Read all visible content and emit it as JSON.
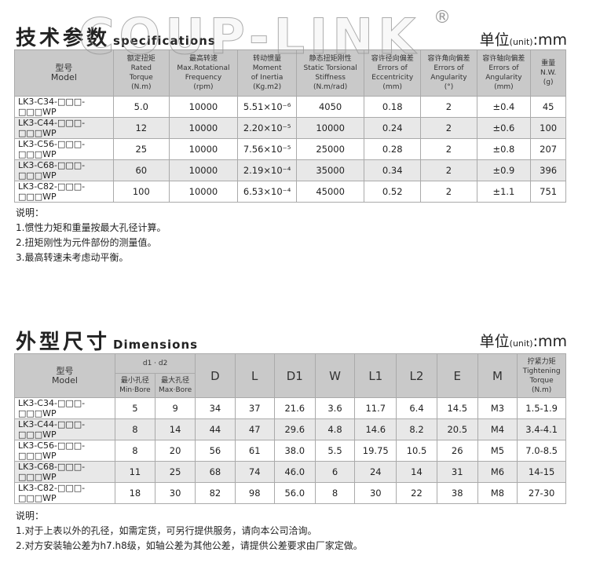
{
  "brand": "COUP-LINK",
  "spec": {
    "title_cn": "技术参数",
    "title_en": "specifications",
    "unit_label": "单位",
    "unit_en": "(unit)",
    "unit_value": ":mm",
    "headers": [
      [
        "型号",
        "Model"
      ],
      [
        "额定扭矩",
        "Rated",
        "Torque",
        "(N.m)"
      ],
      [
        "最高转速",
        "Max.Rotational",
        "Frequency",
        "(rpm)"
      ],
      [
        "转动惯量",
        "Moment",
        "of Inertia",
        "(Kg.m2)"
      ],
      [
        "静态扭矩刚性",
        "Static Torsional",
        "Stiffness",
        "(N.m/rad)"
      ],
      [
        "容许径向偏差",
        "Errors of",
        "Eccentricity",
        "(mm)"
      ],
      [
        "容许角向偏差",
        "Errors of",
        "Angularity",
        "(°)"
      ],
      [
        "容许轴向偏差",
        "Errors of",
        "Angularity",
        "(mm)"
      ],
      [
        "重量",
        "N.W.",
        "(g)"
      ]
    ],
    "rows": [
      [
        "LK3-C34-□□□-□□□WP",
        "5.0",
        "10000",
        "5.51×10⁻⁶",
        "4050",
        "0.18",
        "2",
        "±0.4",
        "45"
      ],
      [
        "LK3-C44-□□□-□□□WP",
        "12",
        "10000",
        "2.20×10⁻⁵",
        "10000",
        "0.24",
        "2",
        "±0.6",
        "100"
      ],
      [
        "LK3-C56-□□□-□□□WP",
        "25",
        "10000",
        "7.56×10⁻⁵",
        "25000",
        "0.28",
        "2",
        "±0.8",
        "207"
      ],
      [
        "LK3-C68-□□□-□□□WP",
        "60",
        "10000",
        "2.19×10⁻⁴",
        "35000",
        "0.34",
        "2",
        "±0.9",
        "396"
      ],
      [
        "LK3-C82-□□□-□□□WP",
        "100",
        "10000",
        "6.53×10⁻⁴",
        "45000",
        "0.52",
        "2",
        "±1.1",
        "751"
      ]
    ],
    "notes": [
      "说明：",
      "1.惯性力矩和重量按最大孔径计算。",
      "2.扭矩刚性为元件部份的测量值。",
      "3.最高转速未考虑动平衡。"
    ]
  },
  "dim": {
    "title_cn": "外型尺寸",
    "title_en": "Dimensions",
    "unit_label": "单位",
    "unit_en": "(unit)",
    "unit_value": ":mm",
    "model_header": [
      "型号",
      "Model"
    ],
    "bore_header": "d1 · d2",
    "min_bore": [
      "最小孔径",
      "Min·Bore"
    ],
    "max_bore": [
      "最大孔径",
      "Max·Bore"
    ],
    "cols": [
      "D",
      "L",
      "D1",
      "W",
      "L1",
      "L2",
      "E",
      "M"
    ],
    "torque_header": [
      "拧紧力矩",
      "Tightening Torque",
      "(N.m)"
    ],
    "rows": [
      [
        "LK3-C34-□□□-□□□WP",
        "5",
        "9",
        "34",
        "37",
        "21.6",
        "3.6",
        "11.7",
        "6.4",
        "14.5",
        "M3",
        "1.5-1.9"
      ],
      [
        "LK3-C44-□□□-□□□WP",
        "8",
        "14",
        "44",
        "47",
        "29.6",
        "4.8",
        "14.6",
        "8.2",
        "20.5",
        "M4",
        "3.4-4.1"
      ],
      [
        "LK3-C56-□□□-□□□WP",
        "8",
        "20",
        "56",
        "61",
        "38.0",
        "5.5",
        "19.75",
        "10.5",
        "26",
        "M5",
        "7.0-8.5"
      ],
      [
        "LK3-C68-□□□-□□□WP",
        "11",
        "25",
        "68",
        "74",
        "46.0",
        "6",
        "24",
        "14",
        "31",
        "M6",
        "14-15"
      ],
      [
        "LK3-C82-□□□-□□□WP",
        "18",
        "30",
        "82",
        "98",
        "56.0",
        "8",
        "30",
        "22",
        "38",
        "M8",
        "27-30"
      ]
    ],
    "notes": [
      "说明：",
      "1.对于上表以外的孔径，如需定货，可另行提供服务，请向本公司洽询。",
      "2.对方安装轴公差为h7.h8级，如轴公差为其他公差，请提供公差要求由厂家定做。"
    ]
  }
}
